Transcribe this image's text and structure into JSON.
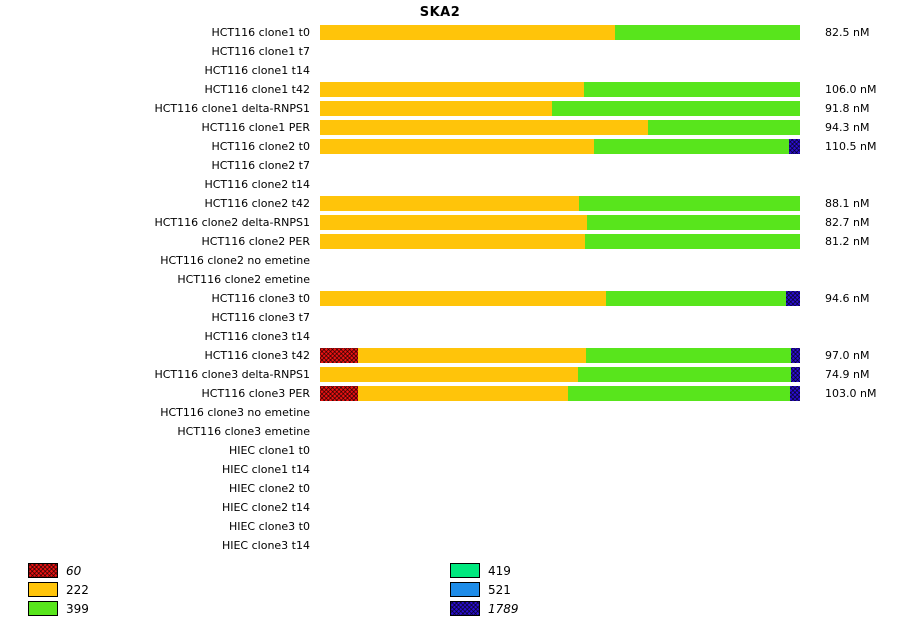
{
  "chart_data": {
    "type": "bar",
    "orientation": "horizontal",
    "stacked": true,
    "title": "SKA2",
    "axis": "segments expressed as percent of full bar width (bar track spans x=320..800 px)",
    "series_legend": [
      {
        "name": "60",
        "color": "#ee1212",
        "hatched": true,
        "italic": true,
        "column": 0
      },
      {
        "name": "222",
        "color": "#ffc40a",
        "hatched": false,
        "italic": false,
        "column": 0
      },
      {
        "name": "399",
        "color": "#58e51c",
        "hatched": false,
        "italic": false,
        "column": 0
      },
      {
        "name": "419",
        "color": "#00e87e",
        "hatched": false,
        "italic": false,
        "column": 1
      },
      {
        "name": "521",
        "color": "#1e8ce8",
        "hatched": false,
        "italic": false,
        "column": 1
      },
      {
        "name": "1789",
        "color": "#2a0ed2",
        "hatched": true,
        "italic": true,
        "column": 1
      }
    ],
    "rows": [
      {
        "label": "HCT116 clone1 t0",
        "value_label": "82.5 nM",
        "segments": [
          {
            "series": "222",
            "pct": 61.5
          },
          {
            "series": "399",
            "pct": 38.5
          }
        ]
      },
      {
        "label": "HCT116 clone1 t7",
        "value_label": "",
        "segments": []
      },
      {
        "label": "HCT116 clone1 t14",
        "value_label": "",
        "segments": []
      },
      {
        "label": "HCT116 clone1 t42",
        "value_label": "106.0 nM",
        "segments": [
          {
            "series": "222",
            "pct": 55.0
          },
          {
            "series": "399",
            "pct": 45.0
          }
        ]
      },
      {
        "label": "HCT116 clone1 delta-RNPS1",
        "value_label": "91.8 nM",
        "segments": [
          {
            "series": "222",
            "pct": 48.3
          },
          {
            "series": "399",
            "pct": 51.7
          }
        ]
      },
      {
        "label": "HCT116 clone1 PER",
        "value_label": "94.3 nM",
        "segments": [
          {
            "series": "222",
            "pct": 68.3
          },
          {
            "series": "399",
            "pct": 31.7
          }
        ]
      },
      {
        "label": "HCT116 clone2 t0",
        "value_label": "110.5 nM",
        "segments": [
          {
            "series": "222",
            "pct": 57.0
          },
          {
            "series": "399",
            "pct": 40.7
          },
          {
            "series": "1789",
            "pct": 2.3
          }
        ]
      },
      {
        "label": "HCT116 clone2 t7",
        "value_label": "",
        "segments": []
      },
      {
        "label": "HCT116 clone2 t14",
        "value_label": "",
        "segments": []
      },
      {
        "label": "HCT116 clone2 t42",
        "value_label": "88.1 nM",
        "segments": [
          {
            "series": "222",
            "pct": 54.0
          },
          {
            "series": "399",
            "pct": 46.0
          }
        ]
      },
      {
        "label": "HCT116 clone2 delta-RNPS1",
        "value_label": "82.7 nM",
        "segments": [
          {
            "series": "222",
            "pct": 55.6
          },
          {
            "series": "399",
            "pct": 44.4
          }
        ]
      },
      {
        "label": "HCT116 clone2 PER",
        "value_label": "81.2 nM",
        "segments": [
          {
            "series": "222",
            "pct": 55.2
          },
          {
            "series": "399",
            "pct": 44.8
          }
        ]
      },
      {
        "label": "HCT116 clone2 no emetine",
        "value_label": "",
        "segments": []
      },
      {
        "label": "HCT116 clone2 emetine",
        "value_label": "",
        "segments": []
      },
      {
        "label": "HCT116 clone3 t0",
        "value_label": "94.6 nM",
        "segments": [
          {
            "series": "222",
            "pct": 59.6
          },
          {
            "series": "399",
            "pct": 37.5
          },
          {
            "series": "1789",
            "pct": 2.9
          }
        ]
      },
      {
        "label": "HCT116 clone3 t7",
        "value_label": "",
        "segments": []
      },
      {
        "label": "HCT116 clone3 t14",
        "value_label": "",
        "segments": []
      },
      {
        "label": "HCT116 clone3 t42",
        "value_label": "97.0 nM",
        "segments": [
          {
            "series": "60",
            "pct": 7.9
          },
          {
            "series": "222",
            "pct": 47.5
          },
          {
            "series": "399",
            "pct": 42.7
          },
          {
            "series": "1789",
            "pct": 1.9
          }
        ]
      },
      {
        "label": "HCT116 clone3 delta-RNPS1",
        "value_label": "74.9 nM",
        "segments": [
          {
            "series": "222",
            "pct": 53.7
          },
          {
            "series": "399",
            "pct": 44.4
          },
          {
            "series": "1789",
            "pct": 1.9
          }
        ]
      },
      {
        "label": "HCT116 clone3 PER",
        "value_label": "103.0 nM",
        "segments": [
          {
            "series": "60",
            "pct": 7.9
          },
          {
            "series": "222",
            "pct": 43.8
          },
          {
            "series": "399",
            "pct": 46.2
          },
          {
            "series": "1789",
            "pct": 2.1
          }
        ]
      },
      {
        "label": "HCT116 clone3 no emetine",
        "value_label": "",
        "segments": []
      },
      {
        "label": "HCT116 clone3 emetine",
        "value_label": "",
        "segments": []
      },
      {
        "label": "HIEC clone1 t0",
        "value_label": "",
        "segments": []
      },
      {
        "label": "HIEC clone1 t14",
        "value_label": "",
        "segments": []
      },
      {
        "label": "HIEC clone2 t0",
        "value_label": "",
        "segments": []
      },
      {
        "label": "HIEC clone2 t14",
        "value_label": "",
        "segments": []
      },
      {
        "label": "HIEC clone3 t0",
        "value_label": "",
        "segments": []
      },
      {
        "label": "HIEC clone3 t14",
        "value_label": "",
        "segments": []
      }
    ]
  }
}
